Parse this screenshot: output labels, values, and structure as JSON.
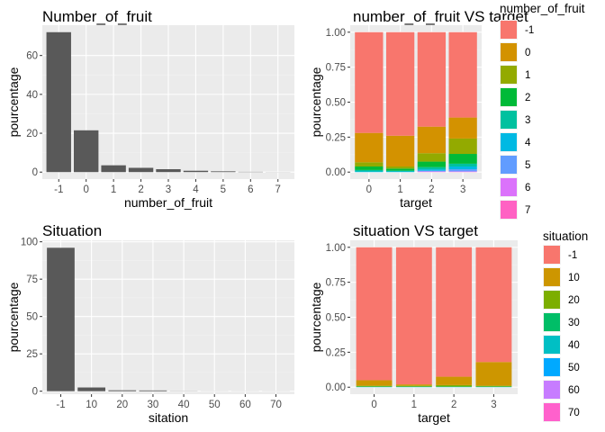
{
  "chart_data": [
    {
      "type": "bar",
      "title": "Number_of_fruit",
      "xlabel": "number_of_fruit",
      "ylabel": "pourcentage",
      "categories": [
        "-1",
        "0",
        "1",
        "2",
        "3",
        "4",
        "5",
        "6",
        "7"
      ],
      "values": [
        72,
        21.5,
        3.5,
        2.2,
        1.5,
        0.7,
        0.4,
        0.15,
        0.05
      ],
      "ylim": [
        -3.6,
        75.6
      ],
      "yticks": [
        0,
        20,
        40,
        60
      ],
      "bar_color": "#595959",
      "grid": true
    },
    {
      "type": "bar",
      "stacked": true,
      "title": "number_of_fruit VS target",
      "xlabel": "target",
      "ylabel": "pourcentage",
      "categories": [
        "0",
        "1",
        "2",
        "3"
      ],
      "ylim": [
        -0.05,
        1.05
      ],
      "yticks": [
        "0.00",
        "0.25",
        "0.50",
        "0.75",
        "1.00"
      ],
      "legend_title": "number_of_fruit",
      "legend_position": "right",
      "series": [
        {
          "name": "-1",
          "color": "#F8766D",
          "values": [
            0.72,
            0.74,
            0.675,
            0.61
          ]
        },
        {
          "name": "0",
          "color": "#D39200",
          "values": [
            0.21,
            0.22,
            0.19,
            0.15
          ]
        },
        {
          "name": "1",
          "color": "#93AA00",
          "values": [
            0.03,
            0.015,
            0.06,
            0.11
          ]
        },
        {
          "name": "2",
          "color": "#00BA38",
          "values": [
            0.025,
            0.015,
            0.04,
            0.07
          ]
        },
        {
          "name": "3",
          "color": "#00C19F",
          "values": [
            0.01,
            0.005,
            0.015,
            0.02
          ]
        },
        {
          "name": "4",
          "color": "#00B9E3",
          "values": [
            0.005,
            0.005,
            0.01,
            0.02
          ]
        },
        {
          "name": "5",
          "color": "#619CFF",
          "values": [
            0.0,
            0.0,
            0.005,
            0.015
          ]
        },
        {
          "name": "6",
          "color": "#DB72FB",
          "values": [
            0.0,
            0.0,
            0.003,
            0.003
          ]
        },
        {
          "name": "7",
          "color": "#FF61C3",
          "values": [
            0.0,
            0.0,
            0.002,
            0.002
          ]
        }
      ]
    },
    {
      "type": "bar",
      "title": "Situation",
      "xlabel": "sitation",
      "ylabel": "pourcentage",
      "categories": [
        "-1",
        "10",
        "20",
        "30",
        "40",
        "50",
        "60",
        "70"
      ],
      "values": [
        96,
        2.5,
        0.6,
        0.5,
        0.1,
        0.05,
        0.05,
        0.05
      ],
      "ylim": [
        -2,
        101
      ],
      "yticks": [
        0,
        25,
        50,
        75,
        100
      ],
      "bar_color": "#595959",
      "grid": true
    },
    {
      "type": "bar",
      "stacked": true,
      "title": "situation VS target",
      "xlabel": "target",
      "ylabel": "pourcentage",
      "categories": [
        "0",
        "1",
        "2",
        "3"
      ],
      "ylim": [
        -0.05,
        1.05
      ],
      "yticks": [
        "0.00",
        "0.25",
        "0.50",
        "0.75",
        "1.00"
      ],
      "legend_title": "situation",
      "legend_position": "right",
      "series": [
        {
          "name": "-1",
          "color": "#F8766D",
          "values": [
            0.95,
            0.98,
            0.925,
            0.82
          ]
        },
        {
          "name": "10",
          "color": "#CD9600",
          "values": [
            0.04,
            0.01,
            0.06,
            0.17
          ]
        },
        {
          "name": "20",
          "color": "#7CAE00",
          "values": [
            0.005,
            0.005,
            0.01,
            0.005
          ]
        },
        {
          "name": "30",
          "color": "#00BE67",
          "values": [
            0.003,
            0.003,
            0.003,
            0.003
          ]
        },
        {
          "name": "40",
          "color": "#00BFC4",
          "values": [
            0.001,
            0.001,
            0.001,
            0.001
          ]
        },
        {
          "name": "50",
          "color": "#00A9FF",
          "values": [
            0.001,
            0.001,
            0.001,
            0.001
          ]
        },
        {
          "name": "60",
          "color": "#C77CFF",
          "values": [
            0.0,
            0.0,
            0.0,
            0.0
          ]
        },
        {
          "name": "70",
          "color": "#FF61CC",
          "values": [
            0.0,
            0.0,
            0.0,
            0.0
          ]
        }
      ]
    }
  ],
  "theme": {
    "panel_bg": "#EBEBEB",
    "grid_major": "#FFFFFF",
    "grid_minor": "#F2F2F2"
  }
}
